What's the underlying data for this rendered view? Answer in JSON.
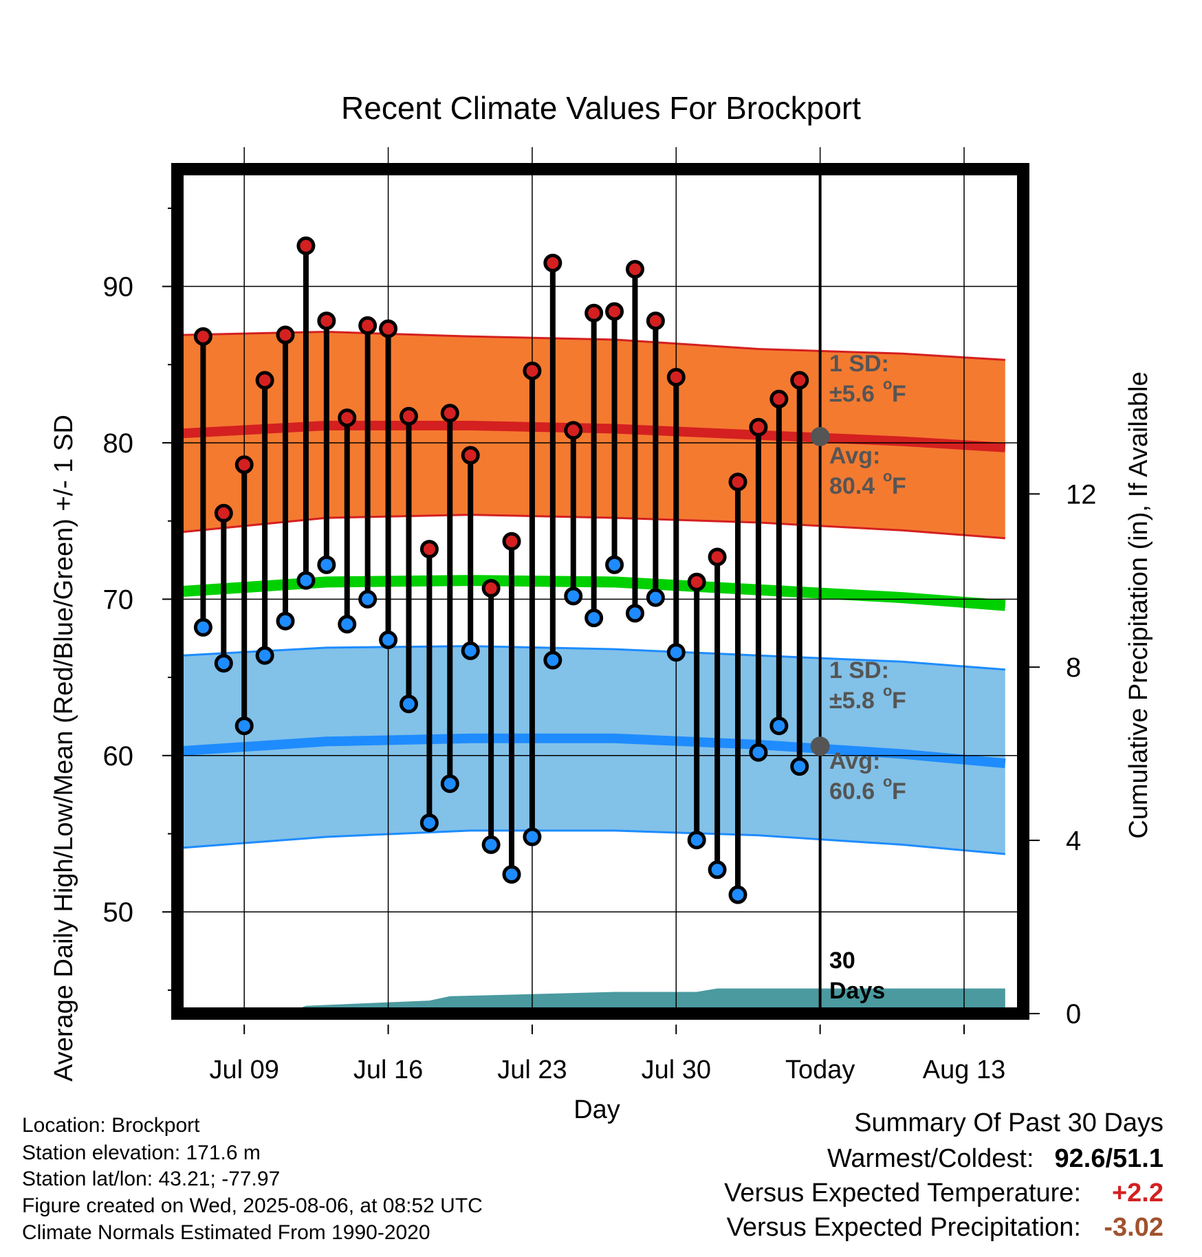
{
  "chart_data": {
    "type": "line",
    "title": "Recent Climate Values For Brockport",
    "xlabel": "Day",
    "ylabel": "Average Daily High/Low/Mean (Red/Blue/Green) +/- 1 SD",
    "y2label": "Cumulative Precipitation (in), If Available",
    "ylim": [
      43.5,
      97.5
    ],
    "y_ticks": [
      50,
      60,
      70,
      80,
      90
    ],
    "y2lim": [
      0,
      19.5
    ],
    "y2_ticks": [
      0,
      4,
      8,
      12
    ],
    "x_ticks": [
      "Jul 09",
      "Jul 16",
      "Jul 23",
      "Jul 30",
      "Today",
      "Aug 13"
    ],
    "x_tick_dates": [
      "2025-07-09",
      "2025-07-16",
      "2025-07-23",
      "2025-07-30",
      "2025-08-06",
      "2025-08-13"
    ],
    "x_range": [
      "2025-07-05 18:00",
      "2025-08-15 21:00"
    ],
    "today": "2025-08-06",
    "grid": true,
    "daily_observations": {
      "dates": [
        "2025-07-07",
        "2025-07-08",
        "2025-07-09",
        "2025-07-10",
        "2025-07-11",
        "2025-07-12",
        "2025-07-13",
        "2025-07-14",
        "2025-07-15",
        "2025-07-16",
        "2025-07-17",
        "2025-07-18",
        "2025-07-19",
        "2025-07-20",
        "2025-07-21",
        "2025-07-22",
        "2025-07-23",
        "2025-07-24",
        "2025-07-25",
        "2025-07-26",
        "2025-07-27",
        "2025-07-28",
        "2025-07-29",
        "2025-07-30",
        "2025-07-31",
        "2025-08-01",
        "2025-08-02",
        "2025-08-03",
        "2025-08-04",
        "2025-08-05"
      ],
      "high": [
        86.8,
        75.5,
        78.6,
        84.0,
        86.9,
        92.6,
        87.8,
        81.6,
        87.5,
        87.3,
        81.7,
        73.2,
        81.9,
        79.2,
        70.7,
        73.7,
        84.6,
        91.5,
        80.8,
        88.3,
        88.4,
        91.1,
        87.8,
        84.2,
        71.1,
        72.7,
        77.5,
        81.0,
        82.8,
        84.0
      ],
      "low": [
        68.2,
        65.9,
        61.9,
        66.4,
        68.6,
        71.2,
        72.2,
        68.4,
        70.0,
        67.4,
        63.3,
        55.7,
        58.2,
        66.7,
        54.3,
        52.4,
        54.8,
        66.1,
        70.2,
        68.8,
        72.2,
        69.1,
        70.1,
        66.6,
        54.6,
        52.7,
        51.1,
        60.2,
        61.9,
        59.3
      ]
    },
    "normals": {
      "dates": [
        "2025-07-06",
        "2025-07-13",
        "2025-07-20",
        "2025-07-27",
        "2025-08-03",
        "2025-08-10",
        "2025-08-15"
      ],
      "avg_high": [
        80.6,
        81.1,
        81.1,
        80.9,
        80.5,
        80.1,
        79.7
      ],
      "high_sd_upper": [
        86.9,
        87.1,
        86.8,
        86.6,
        86.0,
        85.7,
        85.3
      ],
      "high_sd_lower": [
        74.3,
        75.2,
        75.4,
        75.2,
        74.9,
        74.4,
        73.9
      ],
      "avg_mean": [
        70.5,
        71.1,
        71.2,
        71.1,
        70.6,
        70.1,
        69.6
      ],
      "avg_low": [
        60.3,
        60.9,
        61.1,
        61.1,
        60.7,
        60.1,
        59.5
      ],
      "low_sd_upper": [
        66.4,
        66.9,
        67.0,
        66.8,
        66.4,
        66.0,
        65.5
      ],
      "low_sd_lower": [
        54.1,
        54.8,
        55.2,
        55.2,
        54.9,
        54.3,
        53.7
      ]
    },
    "precipitation": {
      "dates": [
        "2025-07-06",
        "2025-07-11",
        "2025-07-12",
        "2025-07-18",
        "2025-07-19",
        "2025-07-27",
        "2025-07-31",
        "2025-08-01",
        "2025-08-15"
      ],
      "cumulative_in": [
        0.0,
        0.0,
        0.18,
        0.3,
        0.4,
        0.5,
        0.5,
        0.58,
        0.58
      ]
    },
    "annotations": {
      "high_sd": {
        "line1": "1 SD:",
        "line2": "±5.6",
        "unit": "F"
      },
      "high_avg": {
        "line1": "Avg:",
        "line2": "80.4",
        "unit": "F",
        "value": 80.4
      },
      "low_sd": {
        "line1": "1 SD:",
        "line2": "±5.8",
        "unit": "F"
      },
      "low_avg": {
        "line1": "Avg:",
        "line2": "60.6",
        "unit": "F",
        "value": 60.6
      },
      "days": {
        "line1": "30",
        "line2": "Days"
      },
      "degree_symbol": "o"
    },
    "colors": {
      "high_band": "#f47a30",
      "high_line": "#d42020",
      "mean_line": "#00d000",
      "low_band": "#82c1e8",
      "low_line": "#1e8cff",
      "precip": "#4a9aa0",
      "high_dot": "#d42020",
      "low_dot": "#1e8cff",
      "today_dot": "#555555",
      "annotation_text": "#555555"
    }
  },
  "info": {
    "location": "Location: Brockport",
    "elevation": "Station elevation: 171.6 m",
    "latlon": "Station lat/lon: 43.21; -77.97",
    "created": "Figure created on Wed, 2025-08-06, at 08:52 UTC",
    "normals": "Climate Normals Estimated From 1990-2020"
  },
  "summary": {
    "title": "Summary Of Past 30 Days",
    "warmest_label": "Warmest/Coldest:",
    "warmest_value": "92.6/51.1",
    "temp_label": "Versus Expected Temperature:",
    "temp_value": "+2.2",
    "temp_color": "#d42020",
    "precip_label": "Versus Expected Precipitation:",
    "precip_value": "-3.02",
    "precip_color": "#a0522d"
  }
}
